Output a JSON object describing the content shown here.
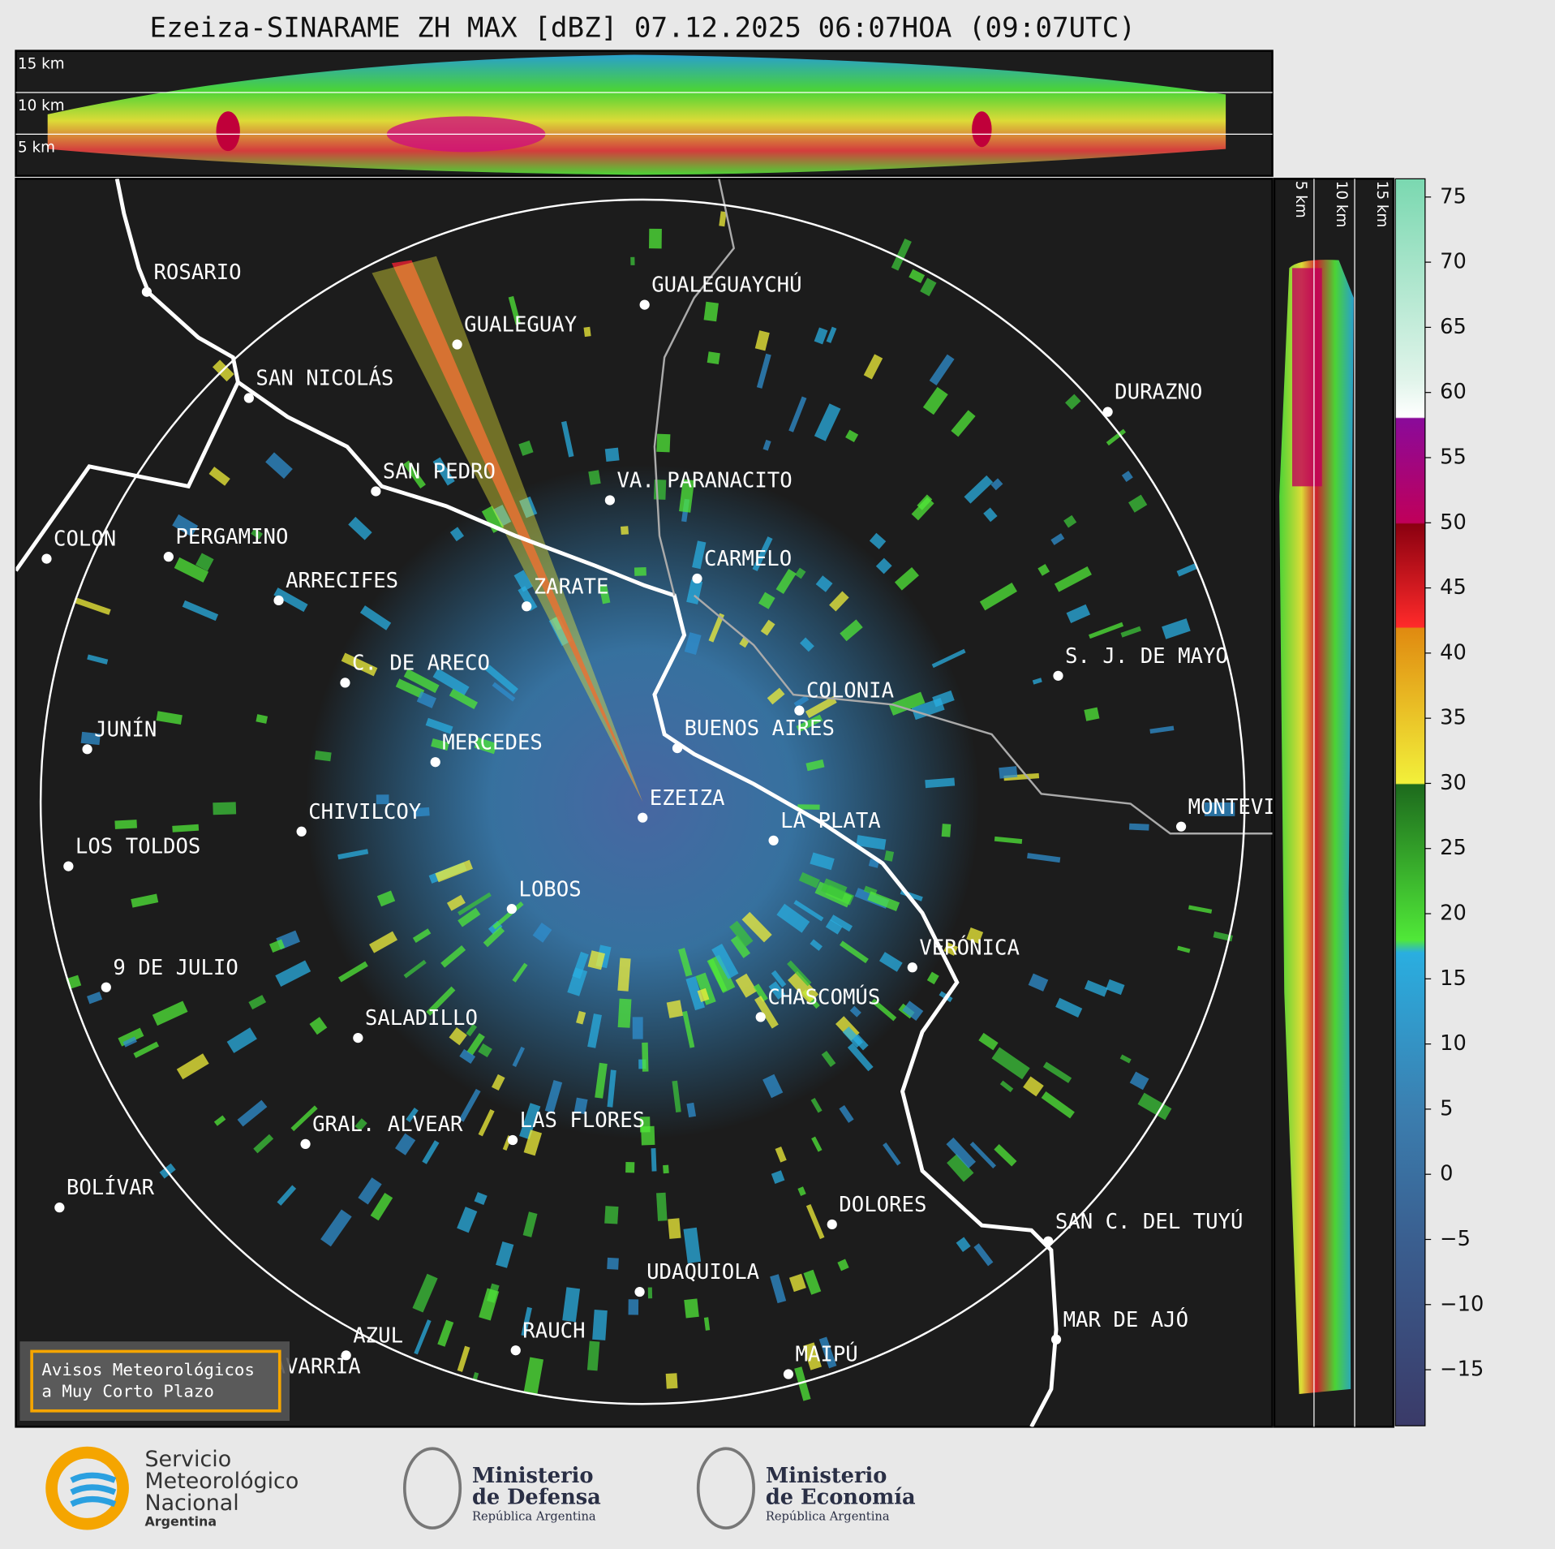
{
  "title": "Ezeiza-SINARAME ZH MAX [dBZ] 07.12.2025 06:07HOA (09:07UTC)",
  "height_labels": [
    "15 km",
    "10 km",
    "5 km"
  ],
  "cities": [
    "ROSARIO",
    "GUALEGUAYCHÚ",
    "GUALEGUAY",
    "SAN NICOLÁS",
    "DURAZNO",
    "SAN PEDRO",
    "VA. PARANACITO",
    "COLON",
    "PERGAMINO",
    "CARMELO",
    "ARRECIFES",
    "ZARATE",
    "S. J. DE MAYO",
    "C. DE ARECO",
    "COLONIA",
    "BUENOS AIRES",
    "JUNÍN",
    "MERCEDES",
    "MONTEVIDEO",
    "EZEIZA",
    "CHIVILCOY",
    "LA PLATA",
    "LOS TOLDOS",
    "LOBOS",
    "VERÓNICA",
    "9 DE JULIO",
    "CHASCOMÚS",
    "SALADILLO",
    "GRAL. ALVEAR",
    "LAS FLORES",
    "BOLÍVAR",
    "DOLORES",
    "SAN C. DEL TUYÚ",
    "UDAQUIOLA",
    "MAR DE AJÓ",
    "AZUL",
    "RAUCH",
    "OLAVARRÍA",
    "MAIPÚ"
  ],
  "colorbar": {
    "range": [
      -19.3,
      76.4
    ],
    "ticks": [
      {
        "value": -15,
        "label": "−15"
      },
      {
        "value": -10,
        "label": "−10"
      },
      {
        "value": -5,
        "label": "−5"
      },
      0,
      5,
      10,
      15,
      20,
      25,
      30,
      35,
      40,
      45,
      50,
      55,
      60,
      65,
      70,
      75
    ],
    "colors": [
      {
        "value": -19.3,
        "color": "#3a3a68"
      },
      {
        "value": -5,
        "color": "#3a5f90"
      },
      {
        "value": 5,
        "color": "#3b7fb0"
      },
      {
        "value": 17,
        "color": "#2aaee0"
      },
      {
        "value": 18,
        "color": "#50e838"
      },
      {
        "value": 29.9,
        "color": "#1d6a1d"
      },
      {
        "value": 30,
        "color": "#f2f03a"
      },
      {
        "value": 41.9,
        "color": "#e08a10"
      },
      {
        "value": 42,
        "color": "#ff2a2a"
      },
      {
        "value": 49.9,
        "color": "#8a0010"
      },
      {
        "value": 50,
        "color": "#c0005a"
      },
      {
        "value": 58,
        "color": "#8a0a9a"
      },
      {
        "value": 58.1,
        "color": "#ffffff"
      },
      {
        "value": 61,
        "color": "#e0f4ea"
      },
      {
        "value": 76.4,
        "color": "#7ad8b0"
      }
    ]
  },
  "warning_box": [
    "Avisos Meteorológicos",
    "a Muy Corto Plazo"
  ],
  "logos": {
    "smn": [
      "Servicio",
      "Meteorológico",
      "Nacional",
      "Argentina"
    ],
    "defensa": [
      "Ministerio",
      "de Defensa",
      "República Argentina"
    ],
    "economia": [
      "Ministerio",
      "de Economía",
      "República Argentina"
    ]
  }
}
